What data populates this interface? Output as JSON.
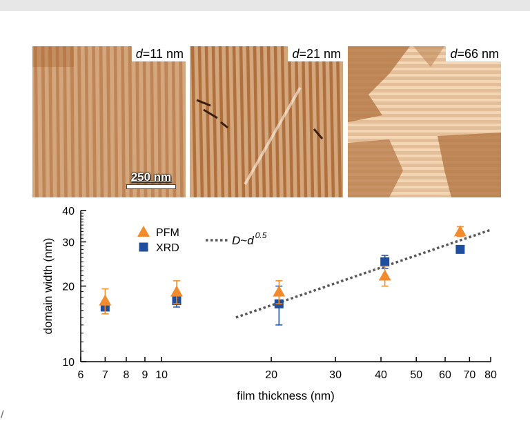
{
  "panels": [
    {
      "var": "d",
      "value": "=11 nm"
    },
    {
      "var": "d",
      "value": "=21 nm"
    },
    {
      "var": "d",
      "value": "=66 nm"
    }
  ],
  "scale_bar": {
    "label": "250 nm"
  },
  "margin_glyph": "/",
  "colors": {
    "pfm": "#f28b2d",
    "xrd": "#1f4f9c",
    "fit": "#595959",
    "stripe_light": "#f6dcbb",
    "stripe_dark": "#a8642f",
    "background_band": "#e7e7e7"
  },
  "chart_data": {
    "type": "scatter",
    "xscale": "log",
    "yscale": "log",
    "xlabel": "film thickness (nm)",
    "ylabel": "domain width (nm)",
    "xlim": [
      6,
      80
    ],
    "ylim": [
      10,
      40
    ],
    "xticks": [
      6,
      7,
      8,
      9,
      10,
      20,
      30,
      40,
      50,
      60,
      70,
      80
    ],
    "xtick_labels": [
      "6",
      "7",
      "8",
      "9",
      "10",
      "20",
      "30",
      "40",
      "50",
      "60",
      "70",
      "80"
    ],
    "yticks": [
      10,
      20,
      30,
      40
    ],
    "ytick_labels": [
      "10",
      "20",
      "30",
      "40"
    ],
    "legend_position": "top-left",
    "series": [
      {
        "name": "PFM",
        "marker": "triangle",
        "color": "#f28b2d",
        "x": [
          7,
          11,
          21,
          41,
          66
        ],
        "y": [
          17.5,
          19,
          19,
          22,
          33
        ],
        "err": [
          2,
          2,
          2,
          2,
          1.5
        ]
      },
      {
        "name": "XRD",
        "marker": "square",
        "color": "#1f4f9c",
        "x": [
          7,
          11,
          21,
          41,
          66
        ],
        "y": [
          16.5,
          17.5,
          17,
          25,
          28
        ],
        "err": [
          1,
          1,
          3,
          1.5,
          0.8
        ]
      }
    ],
    "fit": {
      "label_main": "D",
      "label_sep": "~",
      "label_base": "d",
      "label_exp": "0.5",
      "x": [
        16,
        80
      ],
      "y": [
        15,
        33.5
      ],
      "style": "dotted"
    }
  }
}
